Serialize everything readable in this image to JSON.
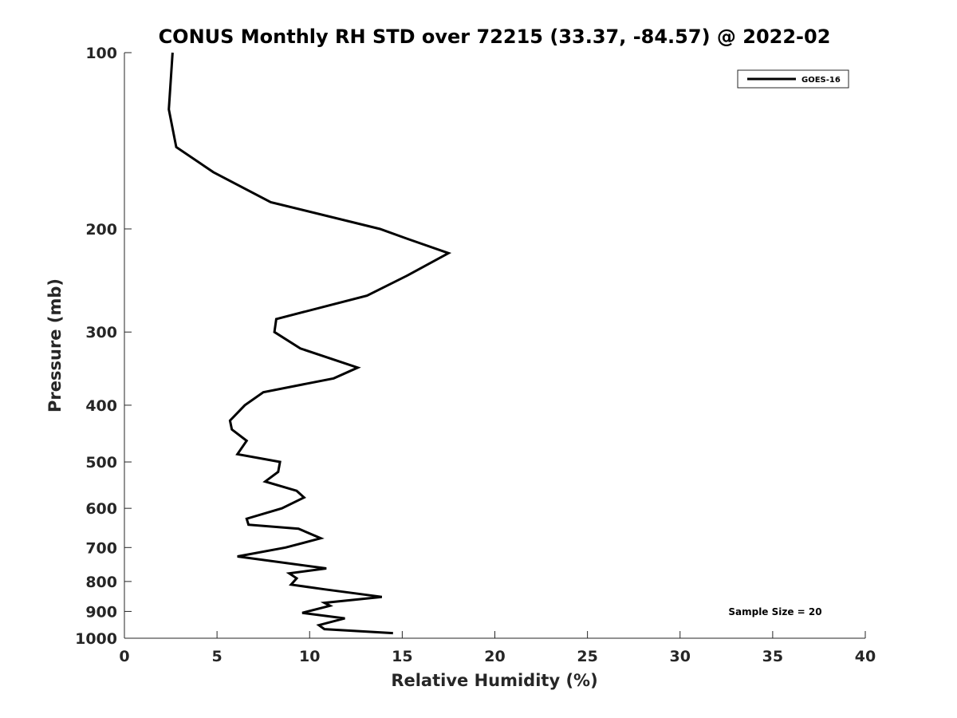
{
  "chart_data": {
    "type": "line",
    "title": "CONUS Monthly RH STD over 72215 (33.37, -84.57) @ 2022-02",
    "xlabel": "Relative Humidity (%)",
    "ylabel": "Pressure (mb)",
    "xlim": [
      0,
      40
    ],
    "ylim": [
      100,
      1000
    ],
    "y_scale": "log",
    "y_reversed": true,
    "x_ticks": [
      0,
      5,
      10,
      15,
      20,
      25,
      30,
      35,
      40
    ],
    "y_ticks": [
      100,
      200,
      300,
      400,
      500,
      600,
      700,
      800,
      900,
      1000
    ],
    "grid": false,
    "legend_position": "top-right",
    "annotation": "Sample Size = 20",
    "series": [
      {
        "name": "GOES-16",
        "color": "#000000",
        "points": [
          {
            "x": 14.5,
            "y": 980
          },
          {
            "x": 10.8,
            "y": 965
          },
          {
            "x": 10.5,
            "y": 950
          },
          {
            "x": 11.9,
            "y": 925
          },
          {
            "x": 9.6,
            "y": 905
          },
          {
            "x": 11.1,
            "y": 880
          },
          {
            "x": 10.8,
            "y": 870
          },
          {
            "x": 13.9,
            "y": 850
          },
          {
            "x": 10.8,
            "y": 825
          },
          {
            "x": 9.0,
            "y": 810
          },
          {
            "x": 9.3,
            "y": 790
          },
          {
            "x": 8.9,
            "y": 775
          },
          {
            "x": 10.9,
            "y": 760
          },
          {
            "x": 6.1,
            "y": 725
          },
          {
            "x": 8.7,
            "y": 700
          },
          {
            "x": 10.6,
            "y": 675
          },
          {
            "x": 9.4,
            "y": 650
          },
          {
            "x": 6.7,
            "y": 640
          },
          {
            "x": 6.6,
            "y": 625
          },
          {
            "x": 8.5,
            "y": 600
          },
          {
            "x": 9.7,
            "y": 575
          },
          {
            "x": 9.3,
            "y": 560
          },
          {
            "x": 7.6,
            "y": 540
          },
          {
            "x": 8.3,
            "y": 520
          },
          {
            "x": 8.4,
            "y": 500
          },
          {
            "x": 6.1,
            "y": 485
          },
          {
            "x": 6.6,
            "y": 460
          },
          {
            "x": 5.8,
            "y": 440
          },
          {
            "x": 5.7,
            "y": 425
          },
          {
            "x": 6.5,
            "y": 400
          },
          {
            "x": 7.5,
            "y": 380
          },
          {
            "x": 11.3,
            "y": 360
          },
          {
            "x": 12.6,
            "y": 345
          },
          {
            "x": 9.5,
            "y": 320
          },
          {
            "x": 8.1,
            "y": 300
          },
          {
            "x": 8.2,
            "y": 285
          },
          {
            "x": 13.1,
            "y": 260
          },
          {
            "x": 15.3,
            "y": 240
          },
          {
            "x": 17.5,
            "y": 220
          },
          {
            "x": 15.3,
            "y": 208
          },
          {
            "x": 13.8,
            "y": 200
          },
          {
            "x": 7.9,
            "y": 180
          },
          {
            "x": 4.8,
            "y": 160
          },
          {
            "x": 2.8,
            "y": 145
          },
          {
            "x": 2.4,
            "y": 125
          },
          {
            "x": 2.6,
            "y": 100
          }
        ]
      }
    ]
  }
}
